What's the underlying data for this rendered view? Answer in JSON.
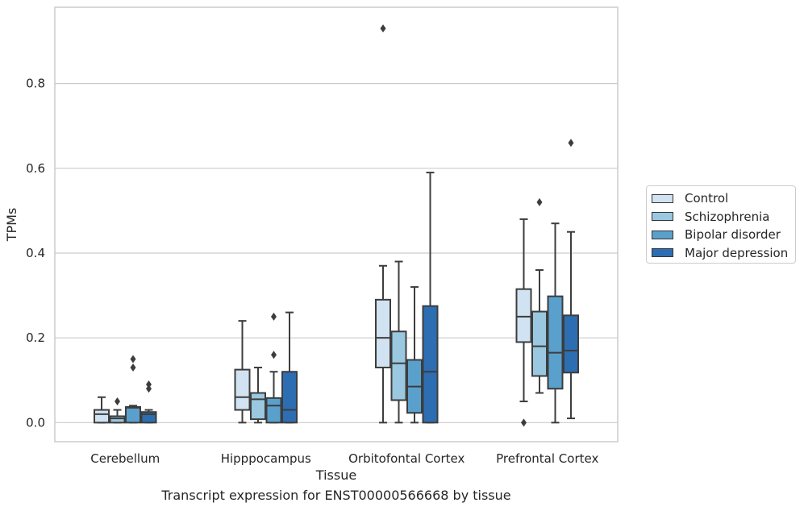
{
  "caption": "Transcript expression for ENST00000566668 by tissue",
  "chart_data": {
    "type": "boxplot",
    "xlabel": "Tissue",
    "ylabel": "TPMs",
    "ylim": [
      -0.045,
      0.98
    ],
    "yticks": [
      0.0,
      0.2,
      0.4,
      0.6,
      0.8
    ],
    "ytick_labels": [
      "0.0",
      "0.2",
      "0.4",
      "0.6",
      "0.8"
    ],
    "grid": "horizontal",
    "legend_position": "right",
    "categories": [
      "Cerebellum",
      "Hipppocampus",
      "Orbitofontal Cortex",
      "Prefrontal Cortex"
    ],
    "series": [
      {
        "name": "Control",
        "color": "#d1e2f2",
        "boxes": [
          {
            "whislo": 0.0,
            "q1": 0.0,
            "med": 0.02,
            "q3": 0.03,
            "whishi": 0.06,
            "fliers": []
          },
          {
            "whislo": 0.0,
            "q1": 0.03,
            "med": 0.06,
            "q3": 0.125,
            "whishi": 0.24,
            "fliers": []
          },
          {
            "whislo": 0.0,
            "q1": 0.13,
            "med": 0.2,
            "q3": 0.29,
            "whishi": 0.37,
            "fliers": [
              0.93
            ]
          },
          {
            "whislo": 0.05,
            "q1": 0.19,
            "med": 0.25,
            "q3": 0.315,
            "whishi": 0.48,
            "fliers": [
              0.0
            ]
          }
        ]
      },
      {
        "name": "Schizophrenia",
        "color": "#9ac8e0",
        "boxes": [
          {
            "whislo": 0.0,
            "q1": 0.0,
            "med": 0.01,
            "q3": 0.015,
            "whishi": 0.03,
            "fliers": [
              0.05
            ]
          },
          {
            "whislo": 0.0,
            "q1": 0.008,
            "med": 0.055,
            "q3": 0.07,
            "whishi": 0.13,
            "fliers": []
          },
          {
            "whislo": 0.0,
            "q1": 0.053,
            "med": 0.14,
            "q3": 0.215,
            "whishi": 0.38,
            "fliers": []
          },
          {
            "whislo": 0.07,
            "q1": 0.11,
            "med": 0.18,
            "q3": 0.262,
            "whishi": 0.36,
            "fliers": [
              0.52
            ]
          }
        ]
      },
      {
        "name": "Bipolar disorder",
        "color": "#5aa0cd",
        "boxes": [
          {
            "whislo": 0.0,
            "q1": 0.0,
            "med": 0.035,
            "q3": 0.037,
            "whishi": 0.04,
            "fliers": [
              0.15,
              0.13
            ]
          },
          {
            "whislo": 0.0,
            "q1": 0.0,
            "med": 0.04,
            "q3": 0.058,
            "whishi": 0.12,
            "fliers": [
              0.25,
              0.16
            ]
          },
          {
            "whislo": 0.0,
            "q1": 0.023,
            "med": 0.085,
            "q3": 0.148,
            "whishi": 0.32,
            "fliers": []
          },
          {
            "whislo": 0.0,
            "q1": 0.08,
            "med": 0.165,
            "q3": 0.298,
            "whishi": 0.47,
            "fliers": []
          }
        ]
      },
      {
        "name": "Major depression",
        "color": "#2c6eb1",
        "boxes": [
          {
            "whislo": 0.0,
            "q1": 0.0,
            "med": 0.02,
            "q3": 0.025,
            "whishi": 0.03,
            "fliers": [
              0.09,
              0.08
            ]
          },
          {
            "whislo": 0.0,
            "q1": 0.0,
            "med": 0.03,
            "q3": 0.12,
            "whishi": 0.26,
            "fliers": []
          },
          {
            "whislo": 0.0,
            "q1": 0.0,
            "med": 0.12,
            "q3": 0.275,
            "whishi": 0.59,
            "fliers": []
          },
          {
            "whislo": 0.01,
            "q1": 0.118,
            "med": 0.17,
            "q3": 0.253,
            "whishi": 0.45,
            "fliers": [
              0.66
            ]
          }
        ]
      }
    ]
  }
}
